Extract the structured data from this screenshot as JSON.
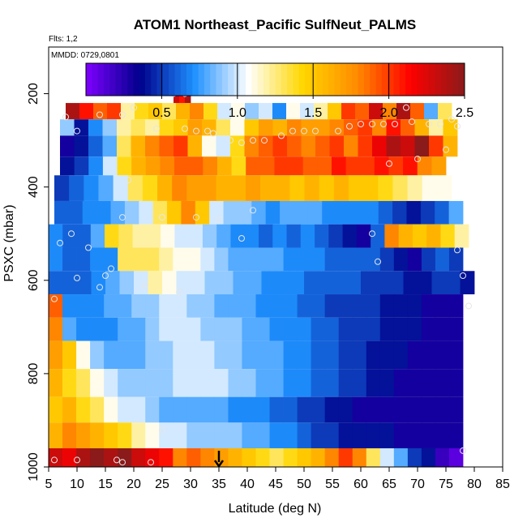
{
  "chart_data": {
    "type": "heatmap",
    "title": "ATOM1 Northeast_Pacific SulfNeut_PALMS",
    "flights_label": "Flts: 1,2",
    "dates_label": "MMDD: 0729,0801",
    "xlabel": "Latitude (deg N)",
    "ylabel": "PSXC (mbar)",
    "xlim": [
      5,
      85
    ],
    "ylim": [
      1000,
      100
    ],
    "x_ticks": [
      "5",
      "10",
      "15",
      "20",
      "25",
      "30",
      "35",
      "40",
      "45",
      "50",
      "55",
      "60",
      "65",
      "70",
      "75",
      "80",
      "85"
    ],
    "y_ticks": [
      "200",
      "400",
      "600",
      "800",
      "1000"
    ],
    "colorbar": {
      "range": [
        0,
        2.5
      ],
      "ticks": [
        "0.5",
        "1.0",
        "1.5",
        "2.0",
        "2.5"
      ],
      "colors": [
        "#7f00ff",
        "#00008b",
        "#1e90ff",
        "#ffffff",
        "#ffd700",
        "#ff8c00",
        "#ff0000",
        "#8b1a1a"
      ]
    },
    "marker": {
      "latitude": 35,
      "pressure": 1000
    },
    "layers": [
      {
        "p_top": 220,
        "p_bot": 255,
        "lat_start": 8,
        "lat_end": 76,
        "values": [
          2.4,
          2.1,
          1.9,
          2.0,
          1.2,
          1.4,
          1.5,
          1.3,
          1.6,
          1.8,
          1.4,
          1.0,
          1.1,
          0.9,
          1.0,
          0.7,
          1.1,
          1.0,
          1.2,
          1.5,
          2.0,
          1.9,
          2.3,
          1.8,
          2.4,
          1.9,
          0.8,
          1.3
        ]
      },
      {
        "p_top": 190,
        "p_bot": 220,
        "lat_start": 27,
        "lat_end": 30,
        "values": [
          2.3,
          2.1,
          2.4
        ]
      },
      {
        "p_top": 255,
        "p_bot": 290,
        "lat_start": 7,
        "lat_end": 77,
        "values": [
          0.9,
          0.4,
          0.7,
          0.9,
          1.2,
          1.3,
          1.2,
          1.4,
          1.5,
          1.7,
          1.6,
          1.3,
          1.1,
          1.5,
          1.7,
          1.6,
          1.8,
          1.7,
          1.7,
          1.8,
          1.9,
          2.0,
          1.8,
          2.1,
          1.9,
          1.6,
          1.2,
          1.5
        ]
      },
      {
        "p_top": 290,
        "p_bot": 335,
        "lat_start": 7,
        "lat_end": 77,
        "values": [
          0.3,
          0.4,
          0.6,
          0.8,
          1.3,
          1.6,
          1.8,
          1.9,
          2.0,
          1.6,
          1.1,
          1.0,
          1.4,
          1.8,
          1.9,
          2.0,
          1.9,
          1.8,
          1.9,
          2.0,
          1.8,
          2.0,
          2.2,
          2.4,
          2.3,
          2.5,
          2.0,
          1.6
        ]
      },
      {
        "p_top": 335,
        "p_bot": 375,
        "lat_start": 7,
        "lat_end": 75,
        "values": [
          0.4,
          0.5,
          0.7,
          1.0,
          1.4,
          1.6,
          1.7,
          1.8,
          1.9,
          1.9,
          1.8,
          1.6,
          1.4,
          1.9,
          1.9,
          2.0,
          2.0,
          1.9,
          1.9,
          2.1,
          2.0,
          2.0,
          2.1,
          2.0,
          2.1,
          1.8,
          1.7
        ]
      },
      {
        "p_top": 375,
        "p_bot": 430,
        "lat_start": 6,
        "lat_end": 76,
        "values": [
          0.5,
          0.6,
          0.7,
          0.8,
          1.0,
          1.3,
          1.4,
          1.6,
          1.8,
          1.7,
          1.7,
          1.6,
          1.6,
          1.7,
          1.6,
          1.6,
          1.5,
          1.6,
          1.5,
          1.6,
          1.5,
          1.5,
          1.4,
          1.3,
          1.2,
          1.1,
          1.1
        ]
      },
      {
        "p_top": 430,
        "p_bot": 480,
        "lat_start": 6,
        "lat_end": 78,
        "values": [
          0.6,
          0.6,
          0.7,
          0.7,
          0.8,
          0.9,
          1.0,
          1.3,
          1.5,
          1.8,
          1.5,
          1.0,
          0.9,
          0.9,
          0.8,
          0.7,
          0.8,
          0.8,
          0.8,
          0.7,
          0.7,
          0.7,
          0.7,
          0.6,
          0.5,
          0.4,
          0.5,
          0.6,
          0.8
        ]
      },
      {
        "p_top": 480,
        "p_bot": 530,
        "lat_start": 5,
        "lat_end": 79,
        "values": [
          0.7,
          0.6,
          0.6,
          0.8,
          1.4,
          1.3,
          1.2,
          1.2,
          1.1,
          1.0,
          1.0,
          0.9,
          0.8,
          0.7,
          0.7,
          0.6,
          0.7,
          0.6,
          0.7,
          0.6,
          0.5,
          0.4,
          0.3,
          0.6,
          1.8,
          1.6,
          1.5,
          1.6,
          1.4,
          1.2
        ]
      },
      {
        "p_top": 530,
        "p_bot": 580,
        "lat_start": 5,
        "lat_end": 78,
        "values": [
          0.7,
          0.6,
          0.6,
          0.7,
          0.7,
          1.3,
          1.3,
          1.3,
          1.2,
          1.1,
          1.1,
          1.0,
          0.9,
          0.8,
          0.8,
          0.8,
          0.8,
          0.7,
          0.7,
          0.7,
          0.6,
          0.6,
          0.6,
          0.6,
          0.5,
          0.4,
          0.3,
          0.5,
          0.6,
          0.5
        ]
      },
      {
        "p_top": 580,
        "p_bot": 630,
        "lat_start": 5,
        "lat_end": 80,
        "values": [
          0.6,
          0.6,
          0.6,
          0.7,
          0.8,
          0.9,
          1.0,
          1.2,
          1.1,
          1.0,
          1.0,
          0.9,
          0.9,
          0.8,
          0.8,
          0.7,
          0.7,
          0.7,
          0.6,
          0.6,
          0.6,
          0.6,
          0.5,
          0.5,
          0.5,
          0.4,
          0.4,
          0.5,
          0.5,
          0.4
        ]
      },
      {
        "p_top": 630,
        "p_bot": 680,
        "lat_start": 5,
        "lat_end": 78,
        "values": [
          1.9,
          0.7,
          0.7,
          0.7,
          0.8,
          0.8,
          0.9,
          0.9,
          1.0,
          1.0,
          0.9,
          0.9,
          0.8,
          0.8,
          0.8,
          0.7,
          0.7,
          0.7,
          0.6,
          0.6,
          0.5,
          0.5,
          0.5,
          0.5,
          0.4,
          0.4,
          0.4,
          0.3,
          0.3,
          0.3
        ]
      },
      {
        "p_top": 680,
        "p_bot": 730,
        "lat_start": 5,
        "lat_end": 78,
        "values": [
          1.8,
          0.8,
          0.7,
          0.7,
          0.7,
          0.8,
          0.8,
          0.9,
          1.0,
          1.0,
          1.0,
          0.9,
          0.9,
          0.9,
          0.8,
          0.8,
          0.7,
          0.7,
          0.7,
          0.6,
          0.6,
          0.5,
          0.5,
          0.5,
          0.4,
          0.4,
          0.4,
          0.3,
          0.3,
          0.3
        ]
      },
      {
        "p_top": 730,
        "p_bot": 790,
        "lat_start": 5,
        "lat_end": 78,
        "values": [
          1.7,
          1.5,
          1.1,
          0.9,
          0.8,
          0.8,
          0.8,
          0.9,
          0.9,
          1.0,
          1.0,
          1.0,
          0.9,
          0.9,
          0.8,
          0.8,
          0.8,
          0.7,
          0.7,
          0.6,
          0.6,
          0.5,
          0.5,
          0.4,
          0.4,
          0.4,
          0.3,
          0.3,
          0.3,
          0.3
        ]
      },
      {
        "p_top": 790,
        "p_bot": 850,
        "lat_start": 5,
        "lat_end": 78,
        "values": [
          1.6,
          1.4,
          1.3,
          1.1,
          1.0,
          0.9,
          0.9,
          0.9,
          0.9,
          1.0,
          1.0,
          1.0,
          1.0,
          0.9,
          0.9,
          0.8,
          0.8,
          0.7,
          0.7,
          0.6,
          0.6,
          0.5,
          0.5,
          0.4,
          0.4,
          0.3,
          0.3,
          0.3,
          0.3,
          0.3
        ]
      },
      {
        "p_top": 850,
        "p_bot": 905,
        "lat_start": 5,
        "lat_end": 78,
        "values": [
          1.5,
          1.6,
          1.4,
          1.3,
          1.1,
          1.0,
          1.0,
          0.9,
          0.8,
          0.8,
          0.8,
          0.8,
          0.8,
          0.7,
          0.7,
          0.7,
          0.6,
          0.6,
          0.5,
          0.5,
          0.4,
          0.4,
          0.3,
          0.3,
          0.3,
          0.3,
          0.3,
          0.3,
          0.3,
          0.3
        ]
      },
      {
        "p_top": 905,
        "p_bot": 960,
        "lat_start": 5,
        "lat_end": 78,
        "values": [
          1.6,
          1.8,
          1.7,
          1.6,
          1.5,
          1.4,
          1.2,
          1.1,
          1.0,
          1.0,
          0.9,
          0.9,
          0.9,
          0.9,
          0.8,
          0.8,
          0.7,
          0.7,
          0.6,
          0.5,
          0.5,
          0.4,
          0.4,
          0.4,
          0.4,
          0.3,
          0.3,
          0.3,
          0.3,
          0.3
        ]
      },
      {
        "p_top": 960,
        "p_bot": 1000,
        "lat_start": 5,
        "lat_end": 78,
        "values": [
          2.3,
          2.2,
          2.4,
          2.5,
          2.4,
          2.5,
          2.3,
          2.2,
          2.1,
          1.8,
          1.9,
          1.8,
          1.7,
          1.6,
          1.5,
          1.4,
          1.3,
          1.4,
          1.5,
          1.6,
          1.8,
          2.0,
          1.8,
          1.3,
          1.0,
          0.8,
          0.5,
          0.4,
          0.2,
          0.1
        ]
      }
    ],
    "points": [
      [
        8,
        250
      ],
      [
        10,
        280
      ],
      [
        14,
        245
      ],
      [
        18,
        245
      ],
      [
        20,
        230
      ],
      [
        24,
        275
      ],
      [
        27,
        200
      ],
      [
        29,
        200
      ],
      [
        29,
        275
      ],
      [
        31,
        280
      ],
      [
        33,
        280
      ],
      [
        34,
        285
      ],
      [
        37,
        300
      ],
      [
        39,
        305
      ],
      [
        41,
        300
      ],
      [
        43,
        300
      ],
      [
        46,
        290
      ],
      [
        48,
        280
      ],
      [
        50,
        280
      ],
      [
        52,
        280
      ],
      [
        56,
        280
      ],
      [
        58,
        270
      ],
      [
        60,
        265
      ],
      [
        62,
        265
      ],
      [
        64,
        265
      ],
      [
        66,
        265
      ],
      [
        68,
        230
      ],
      [
        69,
        260
      ],
      [
        72,
        265
      ],
      [
        74,
        265
      ],
      [
        76,
        255
      ],
      [
        7,
        520
      ],
      [
        9,
        500
      ],
      [
        12,
        530
      ],
      [
        14,
        615
      ],
      [
        16,
        575
      ],
      [
        18,
        465
      ],
      [
        19,
        385
      ],
      [
        22,
        610
      ],
      [
        25,
        465
      ],
      [
        28,
        625
      ],
      [
        31,
        465
      ],
      [
        35,
        470
      ],
      [
        39,
        510
      ],
      [
        41,
        450
      ],
      [
        62,
        500
      ],
      [
        63,
        560
      ],
      [
        65,
        350
      ],
      [
        70,
        340
      ],
      [
        75,
        320
      ],
      [
        77,
        270
      ],
      [
        77,
        535
      ],
      [
        78,
        590
      ],
      [
        79,
        655
      ],
      [
        6,
        640
      ],
      [
        10,
        595
      ],
      [
        15,
        590
      ],
      [
        17,
        985
      ],
      [
        18,
        990
      ],
      [
        23,
        990
      ],
      [
        25,
        920
      ],
      [
        10,
        985
      ],
      [
        6,
        985
      ],
      [
        78,
        965
      ]
    ]
  }
}
